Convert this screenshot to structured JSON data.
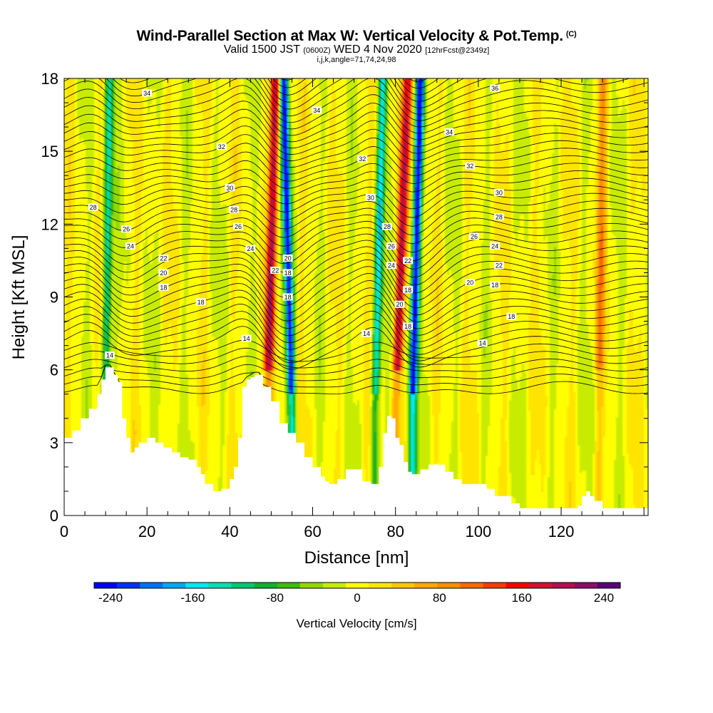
{
  "header": {
    "title": "Wind-Parallel Section at Max W: Vertical Velocity & Pot.Temp.",
    "copyright": "(C)",
    "valid_prefix": "Valid 1500 JST",
    "valid_utc": "(0600Z)",
    "valid_suffix": "WED 4 Nov 2020",
    "forecast": "[12hrFcst@2349z]",
    "params": "i,j,k,angle=71,74,24,98"
  },
  "chart_data": {
    "type": "heatmap",
    "xlabel": "Distance [nm]",
    "ylabel": "Height [Kft MSL]",
    "xlim": [
      0,
      141
    ],
    "ylim": [
      0,
      18
    ],
    "xticks": [
      0,
      20,
      40,
      60,
      80,
      100,
      120
    ],
    "yticks": [
      0,
      3,
      6,
      9,
      12,
      15,
      18
    ],
    "colorbar": {
      "label": "Vertical Velocity [cm/s]",
      "ticks": [
        -240,
        -160,
        -80,
        0,
        80,
        160,
        240
      ],
      "range": [
        -256,
        256
      ],
      "colors": [
        "#0000ff",
        "#0030ff",
        "#0070f0",
        "#00a8f0",
        "#00e8f0",
        "#00e0b0",
        "#00c870",
        "#10b030",
        "#40b810",
        "#90d800",
        "#c8ec00",
        "#ffff00",
        "#ffe400",
        "#ffc800",
        "#ffaa00",
        "#ff8c00",
        "#ff6600",
        "#ff3800",
        "#ff0000",
        "#d8102e",
        "#b0104e",
        "#881066",
        "#5a0076"
      ]
    },
    "w_field": {
      "description_units": "cm/s",
      "updraft_bands": [
        {
          "x_bottom": 49,
          "x_top": 51,
          "peak": 190
        },
        {
          "x_bottom": 80,
          "x_top": 83,
          "peak": 185
        },
        {
          "x_bottom": 129,
          "x_top": 130,
          "peak": 80
        }
      ],
      "downdraft_bands": [
        {
          "x_bottom": 55,
          "x_top": 53,
          "peak": -230
        },
        {
          "x_bottom": 84,
          "x_top": 86,
          "peak": -240
        },
        {
          "x_bottom": 10,
          "x_top": 11,
          "peak": -140
        },
        {
          "x_bottom": 75,
          "x_top": 77,
          "peak": -150
        }
      ]
    },
    "theta_contour_labels": [
      {
        "value": "34",
        "x": 20,
        "y": 17.4
      },
      {
        "value": "34",
        "x": 61,
        "y": 16.7
      },
      {
        "value": "34",
        "x": 93,
        "y": 15.8
      },
      {
        "value": "36",
        "x": 104,
        "y": 17.6
      },
      {
        "value": "32",
        "x": 38,
        "y": 15.2
      },
      {
        "value": "32",
        "x": 72,
        "y": 14.7
      },
      {
        "value": "32",
        "x": 98,
        "y": 14.4
      },
      {
        "value": "30",
        "x": 40,
        "y": 13.5
      },
      {
        "value": "30",
        "x": 74,
        "y": 13.1
      },
      {
        "value": "30",
        "x": 105,
        "y": 13.3
      },
      {
        "value": "28",
        "x": 7,
        "y": 12.7
      },
      {
        "value": "28",
        "x": 41,
        "y": 12.6
      },
      {
        "value": "28",
        "x": 78,
        "y": 11.9
      },
      {
        "value": "28",
        "x": 105,
        "y": 12.3
      },
      {
        "value": "26",
        "x": 15,
        "y": 11.8
      },
      {
        "value": "26",
        "x": 42,
        "y": 11.9
      },
      {
        "value": "26",
        "x": 79,
        "y": 11.1
      },
      {
        "value": "26",
        "x": 99,
        "y": 11.5
      },
      {
        "value": "24",
        "x": 16,
        "y": 11.1
      },
      {
        "value": "24",
        "x": 45,
        "y": 11.0
      },
      {
        "value": "24",
        "x": 79,
        "y": 10.3
      },
      {
        "value": "24",
        "x": 104,
        "y": 11.1
      },
      {
        "value": "22",
        "x": 24,
        "y": 10.6
      },
      {
        "value": "22",
        "x": 51,
        "y": 10.1
      },
      {
        "value": "22",
        "x": 83,
        "y": 10.5
      },
      {
        "value": "22",
        "x": 105,
        "y": 10.3
      },
      {
        "value": "20",
        "x": 24,
        "y": 10.0
      },
      {
        "value": "20",
        "x": 54,
        "y": 10.6
      },
      {
        "value": "20",
        "x": 81,
        "y": 8.7
      },
      {
        "value": "20",
        "x": 98,
        "y": 9.6
      },
      {
        "value": "18",
        "x": 24,
        "y": 9.4
      },
      {
        "value": "18",
        "x": 54,
        "y": 10.0
      },
      {
        "value": "18",
        "x": 54,
        "y": 9.0
      },
      {
        "value": "18",
        "x": 83,
        "y": 9.3
      },
      {
        "value": "18",
        "x": 83,
        "y": 7.8
      },
      {
        "value": "18",
        "x": 104,
        "y": 9.5
      },
      {
        "value": "18",
        "x": 33,
        "y": 8.8
      },
      {
        "value": "18",
        "x": 108,
        "y": 8.2
      },
      {
        "value": "14",
        "x": 44,
        "y": 7.3
      },
      {
        "value": "14",
        "x": 73,
        "y": 7.5
      },
      {
        "value": "14",
        "x": 101,
        "y": 7.1
      },
      {
        "value": "14",
        "x": 11,
        "y": 6.6
      }
    ],
    "terrain": {
      "x": [
        0,
        2,
        4,
        6,
        8,
        9,
        10,
        11,
        12,
        13,
        14,
        15,
        16,
        17,
        18,
        20,
        22,
        24,
        26,
        28,
        30,
        32,
        33,
        34,
        36,
        38,
        40,
        41,
        42,
        43,
        44,
        45,
        46,
        47,
        48,
        50,
        52,
        54,
        56,
        58,
        60,
        62,
        63,
        64,
        66,
        68,
        70,
        71,
        72,
        74,
        76,
        77,
        78,
        79,
        80,
        81,
        82,
        83,
        84,
        86,
        88,
        90,
        92,
        94,
        96,
        98,
        100,
        102,
        104,
        106,
        108,
        110,
        112,
        114,
        116,
        118,
        120,
        122,
        124,
        125,
        126,
        127,
        128,
        130,
        132,
        134,
        136,
        138,
        141
      ],
      "y": [
        3.2,
        3.5,
        4.0,
        4.4,
        5.0,
        5.6,
        6.1,
        6.1,
        5.8,
        5.5,
        4.0,
        3.2,
        2.6,
        2.8,
        3.0,
        3.2,
        3.0,
        2.8,
        2.6,
        2.4,
        2.3,
        2.0,
        1.7,
        1.3,
        1.0,
        1.1,
        1.5,
        2.0,
        3.2,
        5.3,
        5.6,
        5.7,
        5.8,
        5.8,
        5.3,
        4.7,
        3.8,
        3.4,
        3.0,
        2.4,
        2.0,
        1.6,
        1.4,
        1.3,
        1.5,
        1.9,
        1.9,
        1.9,
        1.4,
        1.3,
        2.0,
        3.4,
        4.1,
        4.0,
        3.2,
        2.9,
        2.2,
        1.8,
        1.7,
        1.9,
        2.1,
        2.1,
        1.8,
        1.5,
        1.3,
        1.3,
        1.3,
        1.1,
        0.8,
        0.8,
        0.5,
        0.3,
        0.3,
        0.3,
        0.3,
        0.3,
        0.3,
        0.3,
        0.4,
        0.8,
        1.0,
        0.8,
        0.6,
        0.3,
        0.3,
        0.3,
        0.3,
        0.3,
        0.3
      ]
    }
  }
}
